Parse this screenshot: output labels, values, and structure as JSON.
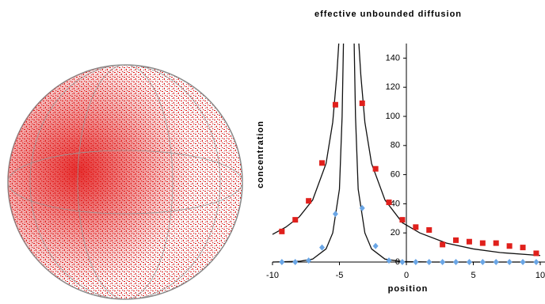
{
  "chart_data": {
    "type": "scatter",
    "title": "effective unbounded diffusion",
    "x_label": "position",
    "y_label": "concentration",
    "xlim": [
      -10,
      10
    ],
    "ylim": [
      0,
      150
    ],
    "xticks": [
      -10,
      -5,
      0,
      5,
      10
    ],
    "yticks": [
      0,
      20,
      40,
      60,
      80,
      100,
      120,
      140
    ],
    "series": [
      {
        "kind": "markers",
        "marker": "square",
        "color": "#e0201c",
        "x": [
          -9.3,
          -8.3,
          -7.3,
          -6.3,
          -5.3,
          -3.3,
          -2.3,
          -1.3,
          -0.3,
          0.7,
          1.7,
          2.7,
          3.7,
          4.7,
          5.7,
          6.7,
          7.7,
          8.7,
          9.7
        ],
        "values": [
          21,
          29,
          42,
          68,
          108,
          109,
          64,
          41,
          29,
          24,
          22,
          12,
          15,
          14,
          13,
          13,
          11,
          10,
          6
        ]
      },
      {
        "kind": "markers",
        "marker": "diamond",
        "color": "#6aa6e6",
        "x": [
          -9.3,
          -8.3,
          -7.3,
          -6.3,
          -5.3,
          -3.3,
          -2.3,
          -1.3,
          -0.3,
          0.7,
          1.7,
          2.7,
          3.7,
          4.7,
          5.7,
          6.7,
          7.7,
          8.7,
          9.7
        ],
        "values": [
          0,
          0,
          1,
          10,
          33,
          37,
          11,
          1,
          0,
          0,
          0,
          0,
          0,
          0,
          0,
          0,
          0,
          0,
          0
        ]
      },
      {
        "kind": "line",
        "color": "#111111",
        "x": [
          -10,
          -9,
          -8,
          -7,
          -6,
          -5.5,
          -5.2,
          -5.05,
          null,
          -3.55,
          -3.4,
          -3.1,
          -2.6,
          -1.6,
          -0.3,
          1,
          3,
          5,
          7,
          10
        ],
        "values": [
          19,
          24,
          31,
          42.6,
          67.6,
          96,
          128,
          150,
          null,
          150,
          128,
          96,
          67.6,
          42.6,
          27,
          20,
          13,
          9,
          6.5,
          4.5
        ]
      },
      {
        "kind": "line",
        "color": "#111111",
        "x": [
          -10,
          -8,
          -7,
          -6,
          -5.5,
          -5,
          -4.8,
          -4.7,
          null,
          -3.9,
          -3.8,
          -3.6,
          -3.1,
          -2.6,
          -1.6,
          -0.3,
          2,
          10
        ],
        "values": [
          0,
          0.5,
          2,
          9,
          20,
          50,
          100,
          150,
          null,
          150,
          100,
          50,
          20,
          9,
          2,
          0.3,
          0,
          0
        ]
      }
    ]
  }
}
